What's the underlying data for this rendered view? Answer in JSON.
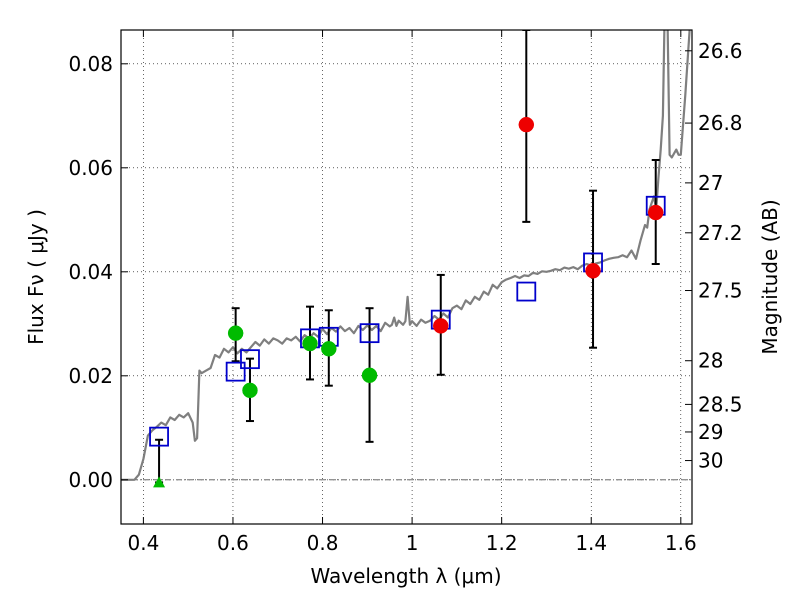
{
  "chart_data": {
    "type": "scatter",
    "xlabel": "Wavelength  λ (μm)",
    "ylabel": "Flux  Fν  ( μJy )",
    "ylabel_right": "Magnitude (AB)",
    "xlim": [
      0.35,
      1.625
    ],
    "ylim": [
      -0.0085,
      0.0865
    ],
    "x_ticks": [
      0.4,
      0.6,
      0.8,
      1,
      1.2,
      1.4,
      1.6
    ],
    "x_tick_labels": [
      "0.4",
      "0.6",
      "0.8",
      "1",
      "1.2",
      "1.4",
      "1.6"
    ],
    "y_ticks": [
      0.0,
      0.02,
      0.04,
      0.06,
      0.08
    ],
    "y_tick_labels": [
      "0.00",
      "0.02",
      "0.04",
      "0.06",
      "0.08"
    ],
    "right_ticks": [
      {
        "label": "26.6",
        "flux": 0.0825
      },
      {
        "label": "26.8",
        "flux": 0.0686
      },
      {
        "label": "27",
        "flux": 0.0571
      },
      {
        "label": "27.2",
        "flux": 0.0475
      },
      {
        "label": "27.5",
        "flux": 0.0364
      },
      {
        "label": "28",
        "flux": 0.0229
      },
      {
        "label": "28.5",
        "flux": 0.0145
      },
      {
        "label": "29",
        "flux": 0.0092
      },
      {
        "label": "30",
        "flux": 0.0037
      }
    ],
    "grid": true,
    "model_spectrum": {
      "color": "#7f7f7f",
      "points": [
        [
          0.35,
          0.0
        ],
        [
          0.37,
          0.0
        ],
        [
          0.38,
          0.0
        ],
        [
          0.39,
          0.001
        ],
        [
          0.4,
          0.004
        ],
        [
          0.41,
          0.0085
        ],
        [
          0.42,
          0.0095
        ],
        [
          0.43,
          0.0102
        ],
        [
          0.44,
          0.011
        ],
        [
          0.45,
          0.0105
        ],
        [
          0.46,
          0.012
        ],
        [
          0.47,
          0.0115
        ],
        [
          0.48,
          0.0125
        ],
        [
          0.49,
          0.012
        ],
        [
          0.5,
          0.0128
        ],
        [
          0.51,
          0.011
        ],
        [
          0.515,
          0.0075
        ],
        [
          0.52,
          0.008
        ],
        [
          0.525,
          0.021
        ],
        [
          0.53,
          0.0205
        ],
        [
          0.54,
          0.021
        ],
        [
          0.55,
          0.0215
        ],
        [
          0.56,
          0.024
        ],
        [
          0.57,
          0.0235
        ],
        [
          0.58,
          0.0252
        ],
        [
          0.59,
          0.0245
        ],
        [
          0.6,
          0.0255
        ],
        [
          0.61,
          0.0243
        ],
        [
          0.62,
          0.0252
        ],
        [
          0.63,
          0.0245
        ],
        [
          0.64,
          0.0255
        ],
        [
          0.65,
          0.0265
        ],
        [
          0.66,
          0.0258
        ],
        [
          0.67,
          0.027
        ],
        [
          0.68,
          0.0262
        ],
        [
          0.69,
          0.0272
        ],
        [
          0.7,
          0.0268
        ],
        [
          0.71,
          0.0262
        ],
        [
          0.72,
          0.0272
        ],
        [
          0.73,
          0.0268
        ],
        [
          0.74,
          0.0275
        ],
        [
          0.75,
          0.0266
        ],
        [
          0.76,
          0.0278
        ],
        [
          0.77,
          0.0272
        ],
        [
          0.78,
          0.0282
        ],
        [
          0.79,
          0.0275
        ],
        [
          0.8,
          0.029
        ],
        [
          0.81,
          0.028
        ],
        [
          0.82,
          0.0292
        ],
        [
          0.83,
          0.0285
        ],
        [
          0.84,
          0.0295
        ],
        [
          0.85,
          0.0286
        ],
        [
          0.86,
          0.0292
        ],
        [
          0.87,
          0.0282
        ],
        [
          0.88,
          0.0296
        ],
        [
          0.89,
          0.0288
        ],
        [
          0.9,
          0.0297
        ],
        [
          0.91,
          0.0288
        ],
        [
          0.92,
          0.0296
        ],
        [
          0.93,
          0.0286
        ],
        [
          0.94,
          0.0302
        ],
        [
          0.95,
          0.0295
        ],
        [
          0.955,
          0.0298
        ],
        [
          0.96,
          0.0312
        ],
        [
          0.965,
          0.0296
        ],
        [
          0.97,
          0.0306
        ],
        [
          0.98,
          0.0298
        ],
        [
          0.985,
          0.0305
        ],
        [
          0.99,
          0.0352
        ],
        [
          0.995,
          0.0298
        ],
        [
          1.0,
          0.0305
        ],
        [
          1.01,
          0.0296
        ],
        [
          1.02,
          0.0308
        ],
        [
          1.03,
          0.0302
        ],
        [
          1.04,
          0.0306
        ],
        [
          1.05,
          0.0315
        ],
        [
          1.06,
          0.0308
        ],
        [
          1.07,
          0.032
        ],
        [
          1.08,
          0.0312
        ],
        [
          1.09,
          0.033
        ],
        [
          1.1,
          0.0335
        ],
        [
          1.11,
          0.0328
        ],
        [
          1.12,
          0.0345
        ],
        [
          1.13,
          0.0338
        ],
        [
          1.14,
          0.0352
        ],
        [
          1.15,
          0.0346
        ],
        [
          1.16,
          0.0362
        ],
        [
          1.17,
          0.0356
        ],
        [
          1.18,
          0.0375
        ],
        [
          1.19,
          0.0368
        ],
        [
          1.2,
          0.038
        ],
        [
          1.21,
          0.0385
        ],
        [
          1.22,
          0.0388
        ],
        [
          1.23,
          0.0392
        ],
        [
          1.24,
          0.0388
        ],
        [
          1.25,
          0.0393
        ],
        [
          1.26,
          0.0392
        ],
        [
          1.27,
          0.0398
        ],
        [
          1.28,
          0.0396
        ],
        [
          1.29,
          0.0401
        ],
        [
          1.3,
          0.04
        ],
        [
          1.31,
          0.0402
        ],
        [
          1.32,
          0.0405
        ],
        [
          1.33,
          0.0403
        ],
        [
          1.34,
          0.0408
        ],
        [
          1.35,
          0.0406
        ],
        [
          1.36,
          0.0409
        ],
        [
          1.37,
          0.0405
        ],
        [
          1.38,
          0.0412
        ],
        [
          1.39,
          0.0415
        ],
        [
          1.4,
          0.0412
        ],
        [
          1.41,
          0.0416
        ],
        [
          1.42,
          0.0418
        ],
        [
          1.43,
          0.0422
        ],
        [
          1.44,
          0.0425
        ],
        [
          1.45,
          0.0427
        ],
        [
          1.46,
          0.0428
        ],
        [
          1.47,
          0.0432
        ],
        [
          1.48,
          0.0428
        ],
        [
          1.49,
          0.0441
        ],
        [
          1.5,
          0.0425
        ],
        [
          1.51,
          0.046
        ],
        [
          1.52,
          0.049
        ],
        [
          1.525,
          0.0485
        ],
        [
          1.53,
          0.052
        ],
        [
          1.54,
          0.0545
        ],
        [
          1.545,
          0.052
        ],
        [
          1.55,
          0.058
        ],
        [
          1.555,
          0.0635
        ],
        [
          1.56,
          0.07
        ],
        [
          1.565,
          0.095
        ],
        [
          1.57,
          0.09
        ],
        [
          1.575,
          0.0625
        ],
        [
          1.58,
          0.062
        ],
        [
          1.59,
          0.0635
        ],
        [
          1.595,
          0.0625
        ],
        [
          1.6,
          0.0625
        ],
        [
          1.61,
          0.074
        ],
        [
          1.62,
          0.087
        ]
      ]
    },
    "series": [
      {
        "marker": "square",
        "color": "#0000cc",
        "points": [
          {
            "x": 0.435,
            "y": 0.0083
          },
          {
            "x": 0.606,
            "y": 0.0208
          },
          {
            "x": 0.638,
            "y": 0.0232
          },
          {
            "x": 0.772,
            "y": 0.0272
          },
          {
            "x": 0.814,
            "y": 0.0275
          },
          {
            "x": 0.905,
            "y": 0.0282
          },
          {
            "x": 1.064,
            "y": 0.0308
          },
          {
            "x": 1.255,
            "y": 0.0362
          },
          {
            "x": 1.404,
            "y": 0.0418
          },
          {
            "x": 1.544,
            "y": 0.0527
          }
        ]
      },
      {
        "marker": "circle",
        "color": "#00bb00",
        "points": [
          {
            "x": 0.606,
            "y": 0.0282,
            "err_lo": 0.0228,
            "err_hi": 0.033
          },
          {
            "x": 0.638,
            "y": 0.0172,
            "err_lo": 0.0113,
            "err_hi": 0.0233
          },
          {
            "x": 0.772,
            "y": 0.0262,
            "err_lo": 0.0193,
            "err_hi": 0.0333
          },
          {
            "x": 0.814,
            "y": 0.0252,
            "err_lo": 0.0181,
            "err_hi": 0.0326
          },
          {
            "x": 0.905,
            "y": 0.0201,
            "err_lo": 0.0073,
            "err_hi": 0.033
          }
        ]
      },
      {
        "marker": "triangle",
        "color": "#00bb00",
        "points": [
          {
            "x": 0.435,
            "y": -0.0005,
            "err_lo": -0.0005,
            "err_hi": 0.0077
          }
        ]
      },
      {
        "marker": "circle",
        "color": "#ee0000",
        "points": [
          {
            "x": 1.064,
            "y": 0.0296,
            "err_lo": 0.0202,
            "err_hi": 0.0394
          },
          {
            "x": 1.255,
            "y": 0.0683,
            "err_lo": 0.0496,
            "err_hi": 0.0865
          },
          {
            "x": 1.404,
            "y": 0.0402,
            "err_lo": 0.0254,
            "err_hi": 0.0556
          },
          {
            "x": 1.544,
            "y": 0.0514,
            "err_lo": 0.0415,
            "err_hi": 0.0615
          }
        ]
      }
    ]
  }
}
